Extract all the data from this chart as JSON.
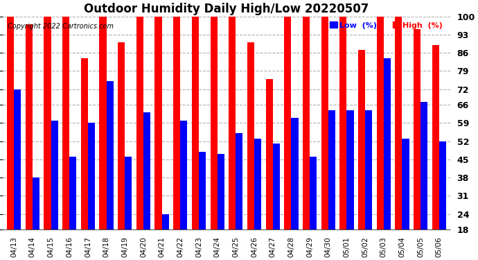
{
  "title": "Outdoor Humidity Daily High/Low 20220507",
  "copyright": "Copyright 2022 Cartronics.com",
  "legend_low": "Low  (%)",
  "legend_high": "High  (%)",
  "dates": [
    "04/13",
    "04/14",
    "04/15",
    "04/16",
    "04/17",
    "04/18",
    "04/19",
    "04/20",
    "04/21",
    "04/22",
    "04/23",
    "04/24",
    "04/25",
    "04/26",
    "04/27",
    "04/28",
    "04/29",
    "04/30",
    "05/01",
    "05/02",
    "05/03",
    "05/04",
    "05/05",
    "05/06"
  ],
  "high": [
    100,
    97,
    100,
    100,
    84,
    100,
    90,
    100,
    100,
    100,
    100,
    100,
    100,
    90,
    76,
    100,
    100,
    100,
    100,
    87,
    100,
    100,
    95,
    89
  ],
  "low": [
    72,
    38,
    60,
    46,
    59,
    75,
    46,
    63,
    24,
    60,
    48,
    47,
    55,
    53,
    51,
    61,
    46,
    64,
    64,
    64,
    84,
    53,
    67,
    52
  ],
  "ylim_min": 18,
  "ylim_max": 100,
  "yticks": [
    18,
    24,
    31,
    38,
    45,
    52,
    59,
    66,
    72,
    79,
    86,
    93,
    100
  ],
  "bar_width": 0.38,
  "high_color": "#ff0000",
  "low_color": "#0000ff",
  "bg_color": "#ffffff",
  "grid_color": "#b0b0b0",
  "title_fontsize": 12,
  "tick_fontsize": 7.5,
  "ytick_fontsize": 9,
  "copyright_fontsize": 7
}
